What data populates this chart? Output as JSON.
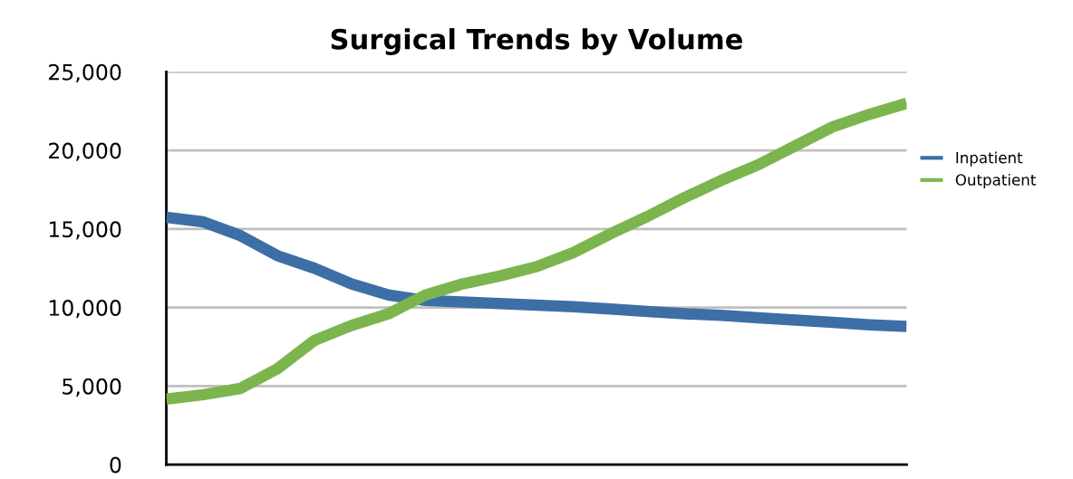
{
  "chart_data": {
    "type": "line",
    "title": "Surgical Trends by Volume",
    "categories": [
      null,
      null,
      null,
      null,
      null,
      null,
      null,
      null,
      null,
      null,
      null,
      null,
      null,
      null,
      null,
      null,
      null,
      null,
      null,
      null,
      null
    ],
    "series": [
      {
        "name": "Inpatient",
        "color": "#3d6fa6",
        "values": [
          15740,
          15450,
          14580,
          13300,
          12500,
          11500,
          10800,
          10450,
          10350,
          10250,
          10150,
          10050,
          9900,
          9750,
          9600,
          9500,
          9350,
          9200,
          9050,
          8900,
          8800
        ]
      },
      {
        "name": "Outpatient",
        "color": "#7cb54e",
        "values": [
          4170,
          4450,
          4850,
          6100,
          7900,
          8850,
          9600,
          10800,
          11500,
          12000,
          12600,
          13500,
          14700,
          15800,
          17000,
          18100,
          19100,
          20300,
          21500,
          22300,
          23000
        ]
      }
    ],
    "ylim": [
      0,
      25000
    ],
    "yticks": [
      0,
      {
        "value": 5000,
        "label": "5,000"
      },
      {
        "value": 10000,
        "label": "10,000"
      },
      {
        "value": 15000,
        "label": "15,000"
      },
      {
        "value": 20000,
        "label": "20,000"
      },
      {
        "value": 25000,
        "label": "25,000"
      }
    ],
    "grid": "y",
    "legend": "right",
    "marker": "none",
    "line_style": "solid",
    "tick_labels": "y"
  }
}
